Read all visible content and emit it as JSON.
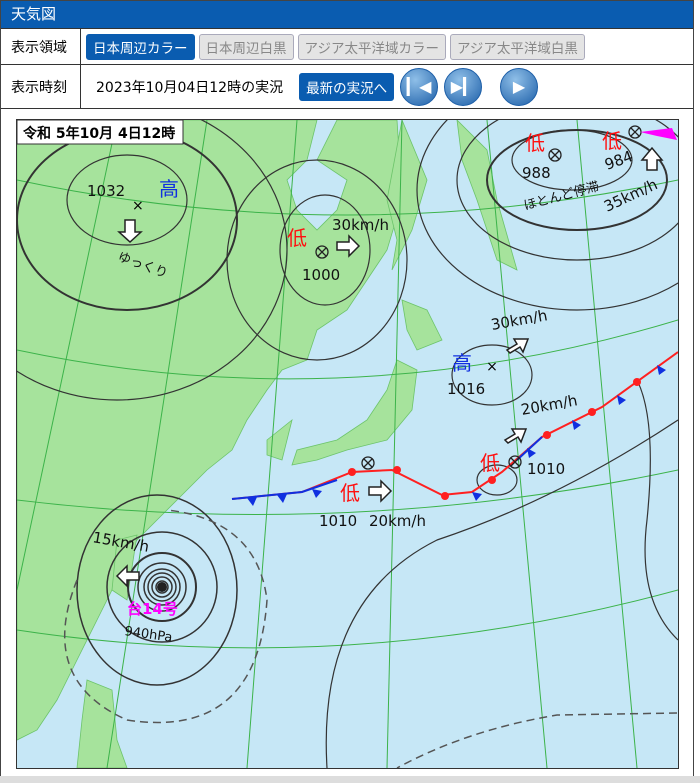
{
  "header": {
    "title": "天気図"
  },
  "area_row": {
    "label": "表示領域",
    "options": [
      {
        "label": "日本周辺カラー",
        "selected": true
      },
      {
        "label": "日本周辺白黒",
        "selected": false
      },
      {
        "label": "アジア太平洋域カラー",
        "selected": false
      },
      {
        "label": "アジア太平洋域白黒",
        "selected": false
      }
    ]
  },
  "time_row": {
    "label": "表示時刻",
    "value": "2023年10月04日12時の実況",
    "latest_button": "最新の実況へ",
    "icons": [
      "skip-first-icon",
      "skip-next-icon",
      "play-icon"
    ]
  },
  "map": {
    "stamp": "令和 5年10月 4日12時",
    "colors": {
      "sea": "#c6e7f6",
      "land": "#a6e39c",
      "high": "#1030e0",
      "low": "#ff1010",
      "typhoon": "#ff00ff",
      "grid": "#3cb34a"
    },
    "systems": [
      {
        "type": "高",
        "pressure": "1032",
        "motion": "ゆっくり"
      },
      {
        "type": "低",
        "pressure": "1000",
        "motion": "30km/h"
      },
      {
        "type": "低",
        "pressure": "988",
        "motion": "ほとんど停滞"
      },
      {
        "type": "低",
        "pressure": "984",
        "motion": "35km/h"
      },
      {
        "type": "高",
        "pressure": "1016",
        "motion": "30km/h"
      },
      {
        "type": "低",
        "pressure": "1010",
        "motion": "20km/h"
      },
      {
        "type": "低",
        "pressure": "1010",
        "motion": "20km/h"
      }
    ],
    "typhoon": {
      "name": "台14号",
      "pressure": "940hPa",
      "motion": "15km/h"
    }
  }
}
